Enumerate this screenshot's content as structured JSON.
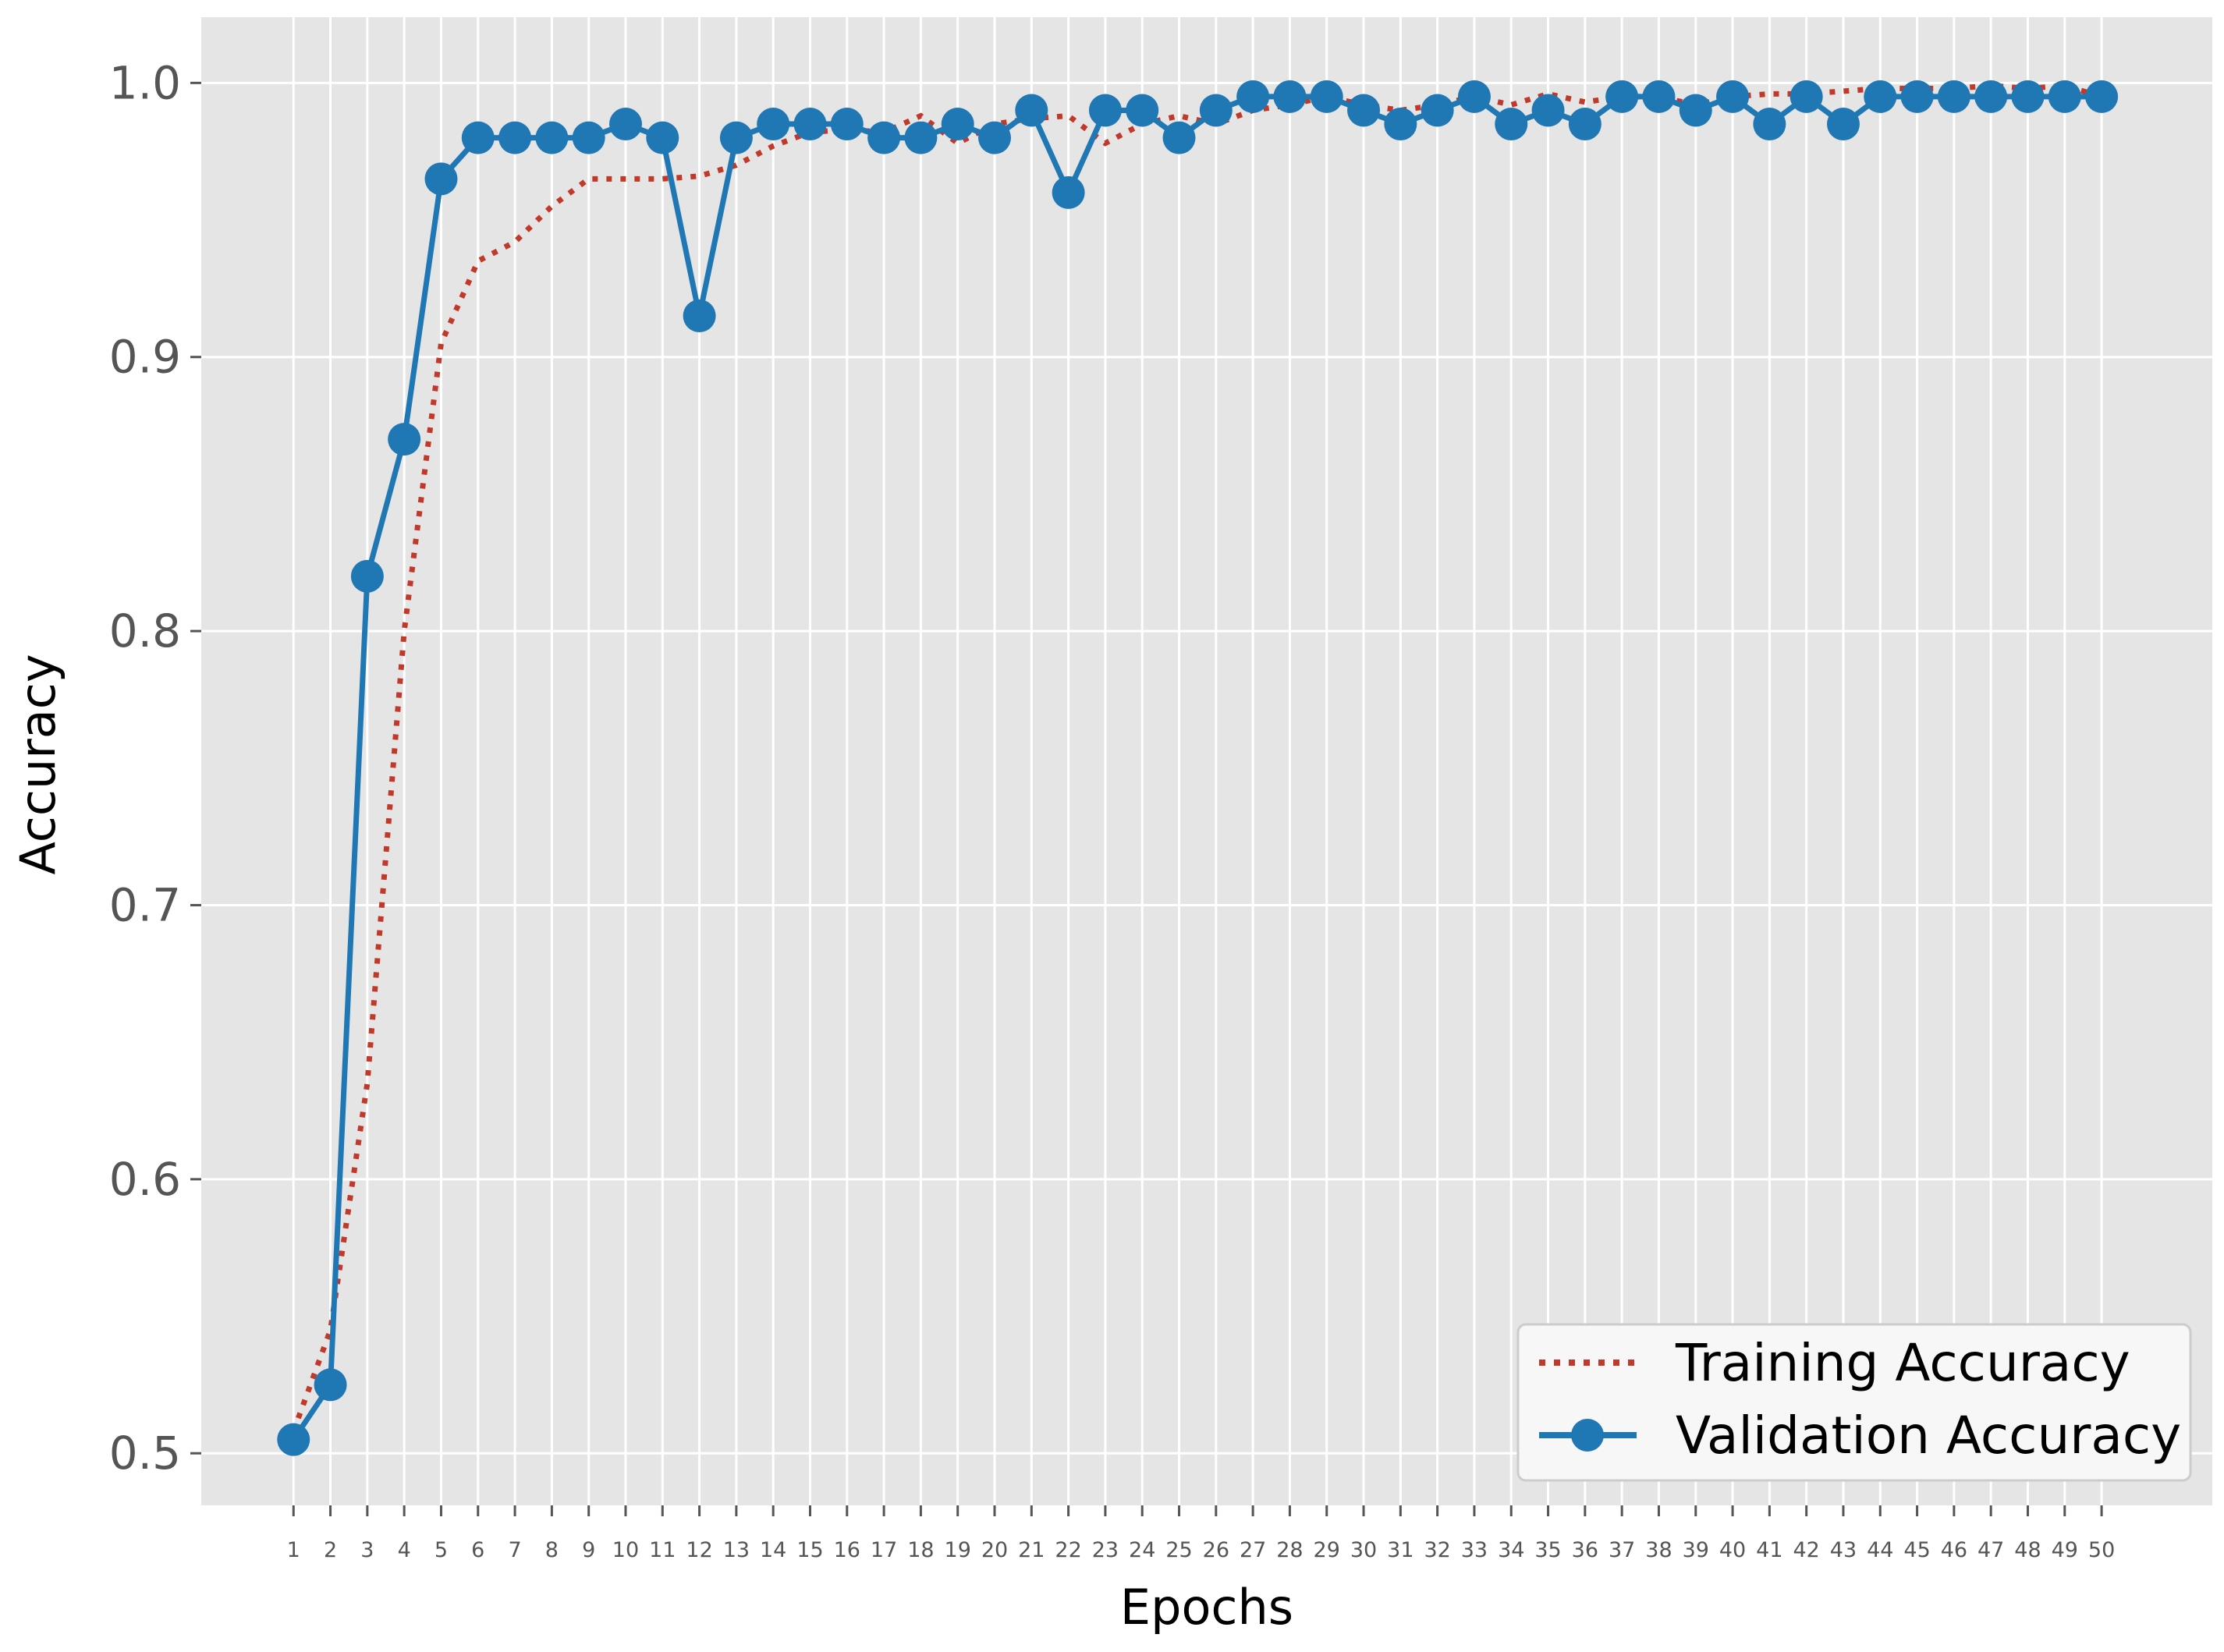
{
  "chart_data": {
    "type": "line",
    "title": "",
    "xlabel": "Epochs",
    "ylabel": "Accuracy",
    "x": [
      1,
      2,
      3,
      4,
      5,
      6,
      7,
      8,
      9,
      10,
      11,
      12,
      13,
      14,
      15,
      16,
      17,
      18,
      19,
      20,
      21,
      22,
      23,
      24,
      25,
      26,
      27,
      28,
      29,
      30,
      31,
      32,
      33,
      34,
      35,
      36,
      37,
      38,
      39,
      40,
      41,
      42,
      43,
      44,
      45,
      46,
      47,
      48,
      49,
      50
    ],
    "x_tick_labels": [
      "1",
      "2",
      "3",
      "4",
      "5",
      "6",
      "7",
      "8",
      "9",
      "10",
      "11",
      "12",
      "13",
      "14",
      "15",
      "16",
      "17",
      "18",
      "19",
      "20",
      "21",
      "22",
      "23",
      "24",
      "25",
      "26",
      "27",
      "28",
      "29",
      "30",
      "31",
      "32",
      "33",
      "34",
      "35",
      "36",
      "37",
      "38",
      "39",
      "40",
      "41",
      "42",
      "43",
      "44",
      "45",
      "46",
      "47",
      "48",
      "49",
      "50"
    ],
    "xlim": [
      -1.5,
      53.0
    ],
    "ylim": [
      0.481,
      1.024
    ],
    "y_ticks": [
      0.5,
      0.6,
      0.7,
      0.8,
      0.9,
      1.0
    ],
    "y_tick_labels": [
      "0.5",
      "0.6",
      "0.7",
      "0.8",
      "0.9",
      "1.0"
    ],
    "grid": true,
    "legend_position": "bottom-right",
    "series": [
      {
        "name": "Training Accuracy",
        "style": "dotted",
        "color": "#c0392b",
        "values": [
          0.508,
          0.545,
          0.635,
          0.8,
          0.905,
          0.935,
          0.942,
          0.955,
          0.965,
          0.965,
          0.965,
          0.966,
          0.97,
          0.977,
          0.982,
          0.983,
          0.982,
          0.988,
          0.978,
          0.985,
          0.987,
          0.988,
          0.978,
          0.985,
          0.988,
          0.985,
          0.99,
          0.992,
          0.995,
          0.992,
          0.99,
          0.992,
          0.995,
          0.992,
          0.996,
          0.993,
          0.995,
          0.995,
          0.992,
          0.995,
          0.996,
          0.996,
          0.997,
          0.998,
          0.998,
          0.998,
          0.999,
          0.998,
          0.999,
          0.995
        ]
      },
      {
        "name": "Validation Accuracy",
        "style": "solid-marker",
        "color": "#1f77b4",
        "values": [
          0.505,
          0.525,
          0.82,
          0.87,
          0.965,
          0.98,
          0.98,
          0.98,
          0.98,
          0.985,
          0.98,
          0.915,
          0.98,
          0.985,
          0.985,
          0.985,
          0.98,
          0.98,
          0.985,
          0.98,
          0.99,
          0.96,
          0.99,
          0.99,
          0.98,
          0.99,
          0.995,
          0.995,
          0.995,
          0.99,
          0.985,
          0.99,
          0.995,
          0.985,
          0.99,
          0.985,
          0.995,
          0.995,
          0.99,
          0.995,
          0.985,
          0.995,
          0.985,
          0.995,
          0.995,
          0.995,
          0.995,
          0.995,
          0.995,
          0.995
        ]
      }
    ]
  },
  "colors": {
    "plot_background": "#e5e5e5",
    "grid": "#ffffff",
    "training": "#c0392b",
    "validation": "#1f77b4"
  }
}
